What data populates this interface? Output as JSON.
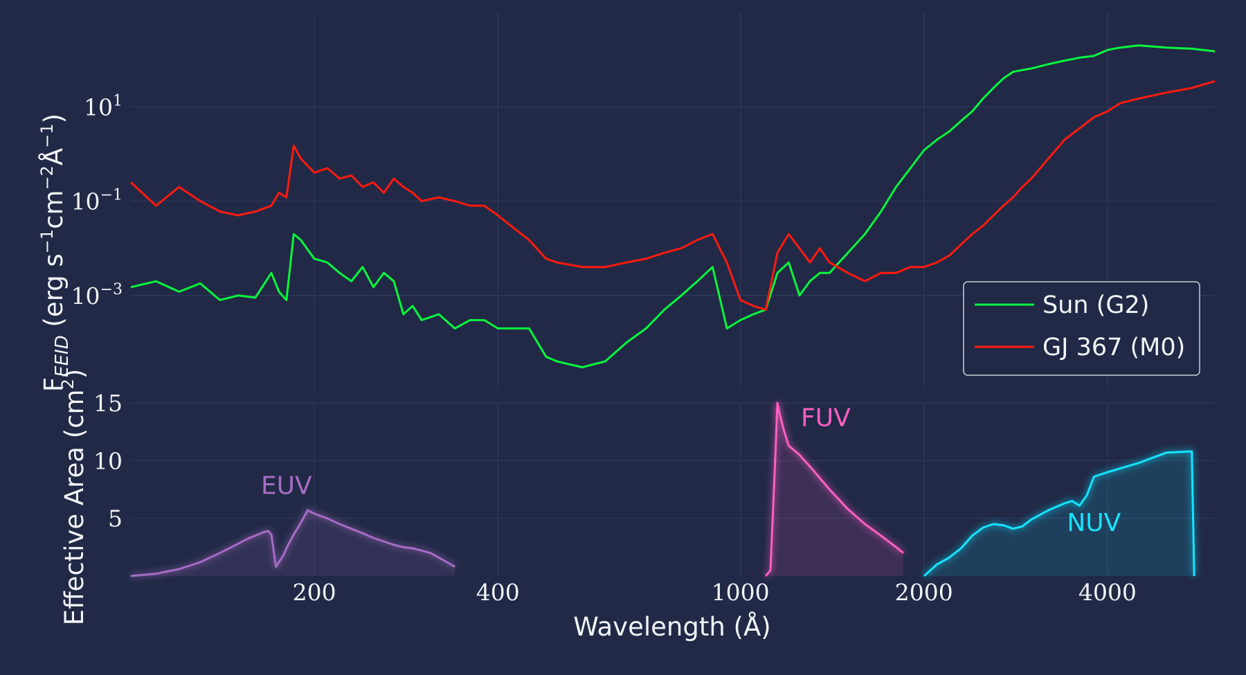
{
  "chart_data": [
    {
      "type": "line",
      "panel": "top",
      "ylabel": "F_EEID (erg s⁻¹cm⁻²Å⁻¹)",
      "ylabel_main": "F",
      "ylabel_sub": "EEID",
      "ylabel_rest": "(erg s",
      "ylabel_e1": "−1",
      "ylabel_rest2": "cm",
      "ylabel_e2": "−2",
      "ylabel_rest3": "Å",
      "ylabel_e3": "−1",
      "ylabel_close": ")",
      "yscale": "log",
      "ylim": [
        1e-05,
        1000
      ],
      "yticks": [
        {
          "value": 10,
          "base": "10",
          "exp": "1"
        },
        {
          "value": 0.1,
          "base": "10",
          "exp": "−1"
        },
        {
          "value": 0.001,
          "base": "10",
          "exp": "−3"
        }
      ],
      "legend_position": "lower-right",
      "series": [
        {
          "name": "Sun (G2)",
          "color": "#08f73c",
          "x": [
            100,
            110,
            120,
            130,
            140,
            150,
            160,
            170,
            175,
            180,
            185,
            190,
            200,
            210,
            220,
            230,
            240,
            250,
            260,
            270,
            280,
            290,
            300,
            320,
            340,
            360,
            380,
            400,
            420,
            450,
            480,
            500,
            550,
            600,
            650,
            700,
            750,
            800,
            850,
            900,
            950,
            1000,
            1050,
            1100,
            1150,
            1200,
            1250,
            1300,
            1350,
            1400,
            1500,
            1600,
            1700,
            1800,
            1900,
            2000,
            2100,
            2200,
            2300,
            2400,
            2500,
            2600,
            2700,
            2800,
            2900,
            3000,
            3200,
            3400,
            3600,
            3800,
            4000,
            4200,
            4500,
            5000,
            5500,
            6000
          ],
          "y": [
            0.0015,
            0.002,
            0.0012,
            0.0018,
            0.0008,
            0.001,
            0.0009,
            0.003,
            0.0012,
            0.0008,
            0.02,
            0.015,
            0.006,
            0.005,
            0.003,
            0.002,
            0.004,
            0.0015,
            0.003,
            0.002,
            0.0004,
            0.0006,
            0.0003,
            0.0004,
            0.0002,
            0.0003,
            0.0003,
            0.0002,
            0.0002,
            0.0002,
            5e-05,
            4e-05,
            3e-05,
            4e-05,
            0.0001,
            0.0002,
            0.0005,
            0.001,
            0.002,
            0.004,
            0.0002,
            0.0003,
            0.0004,
            0.0005,
            0.003,
            0.005,
            0.001,
            0.002,
            0.003,
            0.003,
            0.008,
            0.02,
            0.06,
            0.2,
            0.5,
            1.2,
            2,
            3,
            5,
            8,
            15,
            25,
            40,
            55,
            60,
            65,
            80,
            95,
            110,
            120,
            160,
            180,
            200,
            180,
            170,
            150
          ]
        },
        {
          "name": "GJ 367 (M0)",
          "color": "#ff1a0e",
          "x": [
            100,
            110,
            120,
            130,
            140,
            150,
            160,
            170,
            175,
            180,
            185,
            190,
            200,
            210,
            220,
            230,
            240,
            250,
            260,
            270,
            280,
            290,
            300,
            320,
            340,
            360,
            380,
            400,
            420,
            450,
            480,
            500,
            550,
            600,
            650,
            700,
            750,
            800,
            850,
            900,
            950,
            1000,
            1050,
            1100,
            1150,
            1200,
            1250,
            1300,
            1350,
            1400,
            1500,
            1600,
            1700,
            1800,
            1900,
            2000,
            2100,
            2200,
            2300,
            2400,
            2500,
            2600,
            2700,
            2800,
            2900,
            3000,
            3200,
            3400,
            3600,
            3800,
            4000,
            4200,
            4500,
            5000,
            5500,
            6000
          ],
          "y": [
            0.25,
            0.08,
            0.2,
            0.1,
            0.06,
            0.05,
            0.06,
            0.08,
            0.15,
            0.12,
            1.5,
            0.8,
            0.4,
            0.5,
            0.3,
            0.35,
            0.2,
            0.25,
            0.15,
            0.3,
            0.2,
            0.15,
            0.1,
            0.12,
            0.1,
            0.08,
            0.08,
            0.05,
            0.03,
            0.015,
            0.006,
            0.005,
            0.004,
            0.004,
            0.005,
            0.006,
            0.008,
            0.01,
            0.015,
            0.02,
            0.005,
            0.0008,
            0.0006,
            0.0005,
            0.008,
            0.02,
            0.01,
            0.005,
            0.01,
            0.005,
            0.003,
            0.002,
            0.003,
            0.003,
            0.004,
            0.004,
            0.005,
            0.007,
            0.012,
            0.02,
            0.03,
            0.05,
            0.08,
            0.12,
            0.2,
            0.3,
            0.8,
            2,
            3.5,
            6,
            8,
            12,
            15,
            20,
            25,
            35
          ]
        }
      ]
    },
    {
      "type": "area",
      "panel": "bottom",
      "xlabel": "Wavelength (Å)",
      "ylabel": "Effective Area (cm²)",
      "ylabel_main": "Effective Area (cm",
      "ylabel_e": "2",
      "ylabel_close": ")",
      "xscale": "log",
      "xlim": [
        100,
        6000
      ],
      "xticks": [
        200,
        400,
        1000,
        2000,
        4000
      ],
      "ylim": [
        0,
        15
      ],
      "yticks": [
        5,
        10,
        15
      ],
      "series": [
        {
          "name": "EUV",
          "color": "#a66cc4",
          "x": [
            100,
            110,
            120,
            130,
            140,
            150,
            155,
            160,
            165,
            168,
            170,
            173,
            175,
            178,
            180,
            182,
            185,
            190,
            195,
            200,
            210,
            220,
            230,
            240,
            250,
            260,
            270,
            280,
            290,
            300,
            310,
            320,
            330,
            340
          ],
          "y": [
            0.0,
            0.2,
            0.6,
            1.2,
            2.0,
            2.8,
            3.2,
            3.5,
            3.8,
            3.9,
            3.6,
            0.8,
            1.2,
            1.8,
            2.4,
            2.9,
            3.6,
            4.6,
            5.7,
            5.4,
            5.0,
            4.5,
            4.1,
            3.7,
            3.3,
            3.0,
            2.7,
            2.5,
            2.4,
            2.2,
            2.0,
            1.6,
            1.2,
            0.8
          ]
        },
        {
          "name": "FUV",
          "color": "#ff5ec2",
          "x": [
            1100,
            1120,
            1140,
            1150,
            1160,
            1180,
            1200,
            1250,
            1300,
            1400,
            1500,
            1600,
            1700,
            1800,
            1850
          ],
          "y": [
            0.0,
            0.5,
            10,
            15.0,
            14.0,
            12.5,
            11.3,
            10.5,
            9.5,
            7.5,
            5.8,
            4.5,
            3.5,
            2.5,
            2.0
          ]
        },
        {
          "name": "NUV",
          "color": "#18e3ff",
          "x": [
            2000,
            2100,
            2200,
            2300,
            2400,
            2500,
            2600,
            2700,
            2800,
            2900,
            3000,
            3200,
            3400,
            3500,
            3600,
            3700,
            3800,
            4000,
            4500,
            5000,
            5500,
            5550
          ],
          "y": [
            0.0,
            1.0,
            1.6,
            2.4,
            3.5,
            4.2,
            4.5,
            4.4,
            4.1,
            4.3,
            4.9,
            5.7,
            6.3,
            6.5,
            6.1,
            7.0,
            8.6,
            9.0,
            9.8,
            10.7,
            10.8,
            0.0
          ]
        }
      ]
    }
  ]
}
